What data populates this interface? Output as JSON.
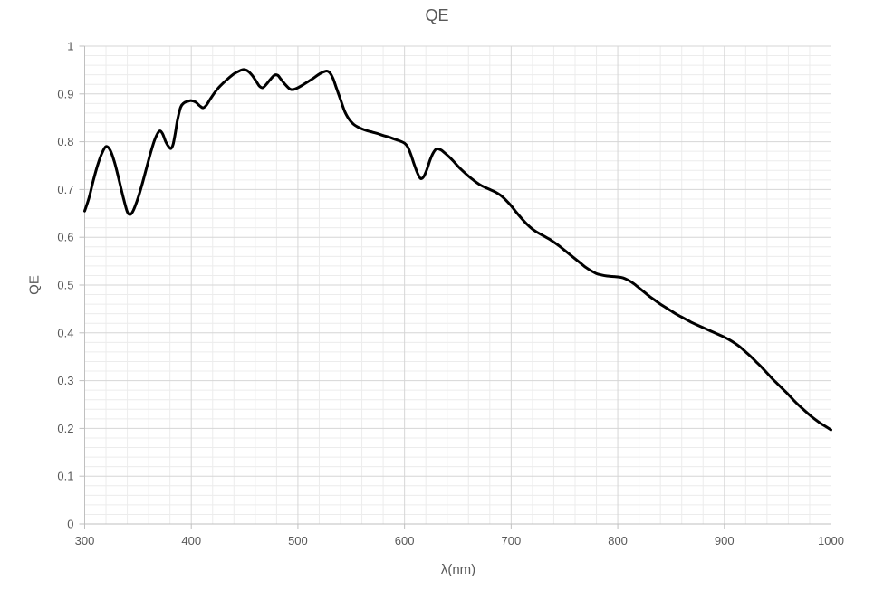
{
  "chart_data": {
    "type": "line",
    "title": "QE",
    "xlabel": "λ(nm)",
    "ylabel": "QE",
    "legend": "none",
    "grid": "major+minor",
    "x_range": [
      300,
      1000
    ],
    "y_range": [
      0,
      1
    ],
    "x_major_unit": 100,
    "x_minor_unit": 20,
    "y_major_unit": 0.1,
    "y_minor_unit": 0.02,
    "x_tick_labels": [
      "300",
      "400",
      "500",
      "600",
      "700",
      "800",
      "900",
      "1000"
    ],
    "y_tick_labels": [
      "0",
      "0.1",
      "0.2",
      "0.3",
      "0.4",
      "0.5",
      "0.6",
      "0.7",
      "0.8",
      "0.9",
      "1"
    ],
    "series": [
      {
        "name": "QE",
        "points": [
          [
            300,
            0.655
          ],
          [
            304,
            0.682
          ],
          [
            308,
            0.718
          ],
          [
            312,
            0.75
          ],
          [
            316,
            0.775
          ],
          [
            320,
            0.79
          ],
          [
            324,
            0.782
          ],
          [
            328,
            0.757
          ],
          [
            332,
            0.722
          ],
          [
            336,
            0.685
          ],
          [
            340,
            0.653
          ],
          [
            343,
            0.648
          ],
          [
            346,
            0.658
          ],
          [
            350,
            0.682
          ],
          [
            354,
            0.712
          ],
          [
            358,
            0.745
          ],
          [
            362,
            0.778
          ],
          [
            366,
            0.806
          ],
          [
            370,
            0.822
          ],
          [
            373,
            0.817
          ],
          [
            376,
            0.8
          ],
          [
            379,
            0.789
          ],
          [
            381,
            0.786
          ],
          [
            383,
            0.795
          ],
          [
            385,
            0.818
          ],
          [
            387,
            0.845
          ],
          [
            390,
            0.872
          ],
          [
            393,
            0.881
          ],
          [
            396,
            0.884
          ],
          [
            400,
            0.886
          ],
          [
            404,
            0.883
          ],
          [
            408,
            0.875
          ],
          [
            411,
            0.871
          ],
          [
            414,
            0.876
          ],
          [
            418,
            0.89
          ],
          [
            422,
            0.903
          ],
          [
            426,
            0.914
          ],
          [
            430,
            0.923
          ],
          [
            435,
            0.933
          ],
          [
            440,
            0.942
          ],
          [
            445,
            0.948
          ],
          [
            449,
            0.951
          ],
          [
            453,
            0.948
          ],
          [
            457,
            0.939
          ],
          [
            461,
            0.926
          ],
          [
            464,
            0.916
          ],
          [
            467,
            0.913
          ],
          [
            470,
            0.919
          ],
          [
            474,
            0.93
          ],
          [
            478,
            0.939
          ],
          [
            481,
            0.939
          ],
          [
            484,
            0.931
          ],
          [
            488,
            0.92
          ],
          [
            492,
            0.911
          ],
          [
            495,
            0.909
          ],
          [
            499,
            0.912
          ],
          [
            504,
            0.918
          ],
          [
            509,
            0.925
          ],
          [
            514,
            0.932
          ],
          [
            519,
            0.94
          ],
          [
            523,
            0.945
          ],
          [
            527,
            0.948
          ],
          [
            530,
            0.944
          ],
          [
            533,
            0.932
          ],
          [
            536,
            0.913
          ],
          [
            540,
            0.888
          ],
          [
            544,
            0.863
          ],
          [
            548,
            0.847
          ],
          [
            552,
            0.837
          ],
          [
            556,
            0.831
          ],
          [
            560,
            0.827
          ],
          [
            565,
            0.823
          ],
          [
            570,
            0.82
          ],
          [
            575,
            0.817
          ],
          [
            580,
            0.813
          ],
          [
            585,
            0.81
          ],
          [
            590,
            0.806
          ],
          [
            595,
            0.802
          ],
          [
            600,
            0.797
          ],
          [
            603,
            0.789
          ],
          [
            606,
            0.773
          ],
          [
            609,
            0.753
          ],
          [
            612,
            0.735
          ],
          [
            615,
            0.723
          ],
          [
            618,
            0.727
          ],
          [
            621,
            0.742
          ],
          [
            624,
            0.762
          ],
          [
            627,
            0.777
          ],
          [
            630,
            0.785
          ],
          [
            634,
            0.783
          ],
          [
            638,
            0.776
          ],
          [
            642,
            0.768
          ],
          [
            646,
            0.759
          ],
          [
            650,
            0.749
          ],
          [
            655,
            0.738
          ],
          [
            660,
            0.728
          ],
          [
            665,
            0.719
          ],
          [
            670,
            0.711
          ],
          [
            675,
            0.705
          ],
          [
            680,
            0.7
          ],
          [
            685,
            0.695
          ],
          [
            690,
            0.688
          ],
          [
            695,
            0.678
          ],
          [
            700,
            0.666
          ],
          [
            705,
            0.652
          ],
          [
            710,
            0.639
          ],
          [
            715,
            0.627
          ],
          [
            720,
            0.617
          ],
          [
            724,
            0.611
          ],
          [
            728,
            0.606
          ],
          [
            732,
            0.601
          ],
          [
            736,
            0.596
          ],
          [
            740,
            0.59
          ],
          [
            745,
            0.582
          ],
          [
            750,
            0.573
          ],
          [
            755,
            0.564
          ],
          [
            760,
            0.555
          ],
          [
            765,
            0.546
          ],
          [
            770,
            0.537
          ],
          [
            775,
            0.53
          ],
          [
            780,
            0.524
          ],
          [
            785,
            0.521
          ],
          [
            790,
            0.519
          ],
          [
            795,
            0.518
          ],
          [
            800,
            0.517
          ],
          [
            805,
            0.515
          ],
          [
            810,
            0.51
          ],
          [
            815,
            0.503
          ],
          [
            820,
            0.494
          ],
          [
            825,
            0.485
          ],
          [
            830,
            0.476
          ],
          [
            835,
            0.468
          ],
          [
            840,
            0.46
          ],
          [
            845,
            0.453
          ],
          [
            850,
            0.446
          ],
          [
            855,
            0.439
          ],
          [
            860,
            0.433
          ],
          [
            865,
            0.427
          ],
          [
            870,
            0.421
          ],
          [
            875,
            0.416
          ],
          [
            880,
            0.411
          ],
          [
            885,
            0.406
          ],
          [
            890,
            0.401
          ],
          [
            895,
            0.396
          ],
          [
            900,
            0.391
          ],
          [
            905,
            0.385
          ],
          [
            910,
            0.378
          ],
          [
            915,
            0.37
          ],
          [
            920,
            0.36
          ],
          [
            925,
            0.35
          ],
          [
            930,
            0.339
          ],
          [
            935,
            0.328
          ],
          [
            940,
            0.316
          ],
          [
            945,
            0.304
          ],
          [
            950,
            0.293
          ],
          [
            955,
            0.282
          ],
          [
            960,
            0.271
          ],
          [
            965,
            0.259
          ],
          [
            970,
            0.248
          ],
          [
            975,
            0.238
          ],
          [
            980,
            0.228
          ],
          [
            985,
            0.219
          ],
          [
            990,
            0.211
          ],
          [
            995,
            0.204
          ],
          [
            1000,
            0.197
          ]
        ]
      }
    ],
    "line_color": "#000000",
    "line_width": 3
  },
  "colors": {
    "text": "#595959",
    "axis_line": "#bfbfbf",
    "major_grid": "#d6d6d6",
    "minor_grid": "#ececec",
    "background": "#ffffff"
  }
}
